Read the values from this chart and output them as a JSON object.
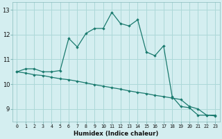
{
  "line1_x": [
    0,
    1,
    2,
    3,
    4,
    5,
    6,
    7,
    8,
    9,
    10,
    11,
    12,
    13,
    14,
    15,
    16,
    17,
    18,
    19,
    20,
    21,
    22,
    23
  ],
  "line1_y": [
    10.5,
    10.62,
    10.62,
    10.5,
    10.5,
    10.55,
    11.85,
    11.5,
    12.05,
    12.25,
    12.25,
    12.9,
    12.45,
    12.35,
    12.6,
    11.3,
    11.15,
    11.55,
    9.5,
    9.1,
    9.05,
    8.75,
    8.75,
    8.75
  ],
  "line2_x": [
    0,
    1,
    2,
    3,
    4,
    5,
    6,
    7,
    8,
    9,
    10,
    11,
    12,
    13,
    14,
    15,
    16,
    17,
    18,
    19,
    20,
    21,
    22,
    23
  ],
  "line2_y": [
    10.5,
    10.45,
    10.38,
    10.35,
    10.28,
    10.22,
    10.18,
    10.12,
    10.05,
    9.98,
    9.92,
    9.86,
    9.8,
    9.73,
    9.67,
    9.62,
    9.55,
    9.5,
    9.44,
    9.38,
    9.1,
    9.0,
    8.75,
    8.72
  ],
  "line_color": "#1a7a6e",
  "bg_color": "#d4eef0",
  "grid_color": "#acd8d8",
  "xlabel": "Humidex (Indice chaleur)",
  "ylim": [
    8.5,
    13.3
  ],
  "xlim": [
    -0.5,
    23.5
  ],
  "yticks": [
    9,
    10,
    11,
    12,
    13
  ],
  "xticks": [
    0,
    1,
    2,
    3,
    4,
    5,
    6,
    7,
    8,
    9,
    10,
    11,
    12,
    13,
    14,
    15,
    16,
    17,
    18,
    19,
    20,
    21,
    22,
    23
  ]
}
